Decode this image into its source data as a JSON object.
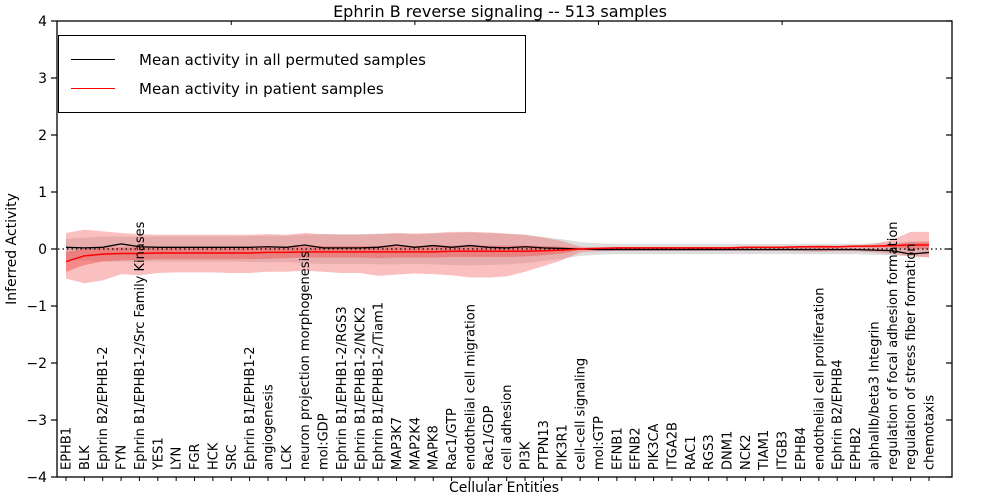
{
  "title": "Ephrin B reverse signaling -- 513 samples",
  "chart_data": {
    "type": "line",
    "title": "Ephrin B reverse signaling -- 513 samples",
    "xlabel": "Cellular Entities",
    "ylabel": "Inferred Activity",
    "ylim": [
      -4,
      4
    ],
    "yticks": [
      4,
      3,
      2,
      1,
      0,
      -1,
      -2,
      -3,
      -4
    ],
    "grid": false,
    "legend_position": "upper left",
    "zero_line": {
      "value": 0,
      "style": "dotted",
      "color": "#000000"
    },
    "categories": [
      "EPHB1",
      "BLK",
      "Ephrin B2/EPHB1-2",
      "FYN",
      "Ephrin B1/EPHB1-2/Src Family Kinases",
      "YES1",
      "LYN",
      "FGR",
      "HCK",
      "SRC",
      "Ephrin B1/EPHB1-2",
      "angiogenesis",
      "LCK",
      "neuron projection morphogenesis",
      "mol:GDP",
      "Ephrin B1/EPHB1-2/RGS3",
      "Ephrin B1/EPHB1-2/NCK2",
      "Ephrin B1/EPHB1-2/Tiam1",
      "MAP3K7",
      "MAP2K4",
      "MAPK8",
      "Rac1/GTP",
      "endothelial cell migration",
      "Rac1/GDP",
      "cell adhesion",
      "PI3K",
      "PTPN13",
      "PIK3R1",
      "cell-cell signaling",
      "mol:GTP",
      "EFNB1",
      "EFNB2",
      "PIK3CA",
      "ITGA2B",
      "RAC1",
      "RGS3",
      "DNM1",
      "NCK2",
      "TIAM1",
      "ITGB3",
      "EPHB4",
      "endothelial cell proliferation",
      "Ephrin B2/EPHB4",
      "EPHB2",
      "alphaIIb/beta3 Integrin",
      "regulation of focal adhesion formation",
      "regulation of stress fiber formation",
      "chemotaxis"
    ],
    "series": [
      {
        "name": "Mean activity in all permuted samples",
        "color": "#000000",
        "width": 1.3,
        "values": [
          0.03,
          0.02,
          0.03,
          0.09,
          0.04,
          0.03,
          0.03,
          0.03,
          0.03,
          0.03,
          0.03,
          0.04,
          0.03,
          0.07,
          0.02,
          0.02,
          0.02,
          0.03,
          0.07,
          0.03,
          0.06,
          0.03,
          0.06,
          0.03,
          0.02,
          0.04,
          0.02,
          0.01,
          0.0,
          -0.01,
          -0.01,
          -0.01,
          -0.01,
          -0.01,
          -0.01,
          -0.01,
          -0.01,
          -0.01,
          -0.01,
          -0.01,
          -0.01,
          -0.01,
          -0.01,
          -0.01,
          -0.02,
          -0.03,
          -0.09,
          -0.06
        ]
      },
      {
        "name": "Mean activity in patient samples",
        "color": "#ff0000",
        "width": 1.5,
        "values": [
          -0.22,
          -0.12,
          -0.09,
          -0.08,
          -0.08,
          -0.07,
          -0.07,
          -0.07,
          -0.07,
          -0.07,
          -0.07,
          -0.06,
          -0.06,
          -0.05,
          -0.05,
          -0.05,
          -0.05,
          -0.05,
          -0.05,
          -0.05,
          -0.05,
          -0.04,
          -0.04,
          -0.04,
          -0.04,
          -0.04,
          -0.03,
          -0.02,
          0.0,
          0.01,
          0.02,
          0.02,
          0.02,
          0.02,
          0.02,
          0.02,
          0.02,
          0.03,
          0.03,
          0.03,
          0.04,
          0.04,
          0.04,
          0.05,
          0.05,
          0.06,
          0.07,
          0.07
        ]
      }
    ],
    "bands": [
      {
        "name": "permuted-std-band",
        "color": "#b3b3b3",
        "opacity": 0.45,
        "upper": [
          0.18,
          0.2,
          0.22,
          0.22,
          0.22,
          0.22,
          0.22,
          0.22,
          0.22,
          0.22,
          0.23,
          0.23,
          0.23,
          0.25,
          0.26,
          0.26,
          0.26,
          0.27,
          0.27,
          0.26,
          0.27,
          0.28,
          0.29,
          0.28,
          0.27,
          0.25,
          0.21,
          0.17,
          0.12,
          0.1,
          0.09,
          0.09,
          0.09,
          0.09,
          0.09,
          0.09,
          0.09,
          0.09,
          0.09,
          0.09,
          0.09,
          0.09,
          0.09,
          0.09,
          0.1,
          0.11,
          0.13,
          0.14
        ],
        "lower": [
          -0.18,
          -0.2,
          -0.22,
          -0.22,
          -0.22,
          -0.22,
          -0.22,
          -0.22,
          -0.22,
          -0.22,
          -0.23,
          -0.23,
          -0.23,
          -0.25,
          -0.26,
          -0.26,
          -0.26,
          -0.27,
          -0.27,
          -0.26,
          -0.27,
          -0.28,
          -0.29,
          -0.28,
          -0.27,
          -0.25,
          -0.21,
          -0.17,
          -0.12,
          -0.1,
          -0.09,
          -0.09,
          -0.09,
          -0.09,
          -0.09,
          -0.09,
          -0.09,
          -0.09,
          -0.09,
          -0.09,
          -0.09,
          -0.09,
          -0.09,
          -0.09,
          -0.1,
          -0.11,
          -0.13,
          -0.14
        ]
      },
      {
        "name": "patient-outer-band",
        "color": "#f37070",
        "opacity": 0.45,
        "upper": [
          0.28,
          0.34,
          0.31,
          0.28,
          0.26,
          0.25,
          0.25,
          0.25,
          0.25,
          0.25,
          0.25,
          0.26,
          0.25,
          0.28,
          0.26,
          0.25,
          0.25,
          0.26,
          0.28,
          0.27,
          0.28,
          0.3,
          0.3,
          0.29,
          0.27,
          0.25,
          0.2,
          0.14,
          0.04,
          0.03,
          0.03,
          0.03,
          0.03,
          0.03,
          0.03,
          0.03,
          0.03,
          0.04,
          0.04,
          0.04,
          0.05,
          0.07,
          0.05,
          0.05,
          0.09,
          0.16,
          0.3,
          0.3
        ],
        "lower": [
          -0.52,
          -0.6,
          -0.55,
          -0.44,
          -0.46,
          -0.42,
          -0.41,
          -0.41,
          -0.41,
          -0.42,
          -0.42,
          -0.4,
          -0.4,
          -0.38,
          -0.4,
          -0.42,
          -0.42,
          -0.47,
          -0.45,
          -0.43,
          -0.44,
          -0.46,
          -0.5,
          -0.5,
          -0.48,
          -0.4,
          -0.3,
          -0.2,
          -0.06,
          -0.04,
          -0.03,
          -0.03,
          -0.03,
          -0.03,
          -0.03,
          -0.03,
          -0.03,
          -0.03,
          -0.03,
          -0.03,
          -0.04,
          -0.05,
          -0.04,
          -0.04,
          -0.06,
          -0.09,
          -0.13,
          -0.15
        ]
      },
      {
        "name": "patient-inner-band",
        "color": "#ee5555",
        "opacity": 0.5,
        "upper": [
          -0.05,
          0.0,
          0.02,
          0.03,
          0.03,
          0.03,
          0.03,
          0.03,
          0.03,
          0.03,
          0.03,
          0.04,
          0.04,
          0.05,
          0.05,
          0.05,
          0.05,
          0.05,
          0.05,
          0.05,
          0.05,
          0.06,
          0.06,
          0.06,
          0.06,
          0.06,
          0.05,
          0.04,
          0.02,
          0.02,
          0.03,
          0.03,
          0.03,
          0.03,
          0.03,
          0.03,
          0.03,
          0.04,
          0.04,
          0.04,
          0.05,
          0.05,
          0.05,
          0.06,
          0.06,
          0.07,
          0.12,
          0.12
        ],
        "lower": [
          -0.4,
          -0.28,
          -0.22,
          -0.2,
          -0.19,
          -0.18,
          -0.18,
          -0.18,
          -0.18,
          -0.18,
          -0.18,
          -0.17,
          -0.16,
          -0.15,
          -0.15,
          -0.15,
          -0.15,
          -0.16,
          -0.15,
          -0.15,
          -0.15,
          -0.14,
          -0.14,
          -0.14,
          -0.14,
          -0.13,
          -0.11,
          -0.08,
          -0.02,
          -0.01,
          0.0,
          0.0,
          0.0,
          0.0,
          0.0,
          0.0,
          0.0,
          0.01,
          0.01,
          0.01,
          0.02,
          0.02,
          0.02,
          0.03,
          0.03,
          0.03,
          0.0,
          0.0
        ]
      }
    ]
  }
}
